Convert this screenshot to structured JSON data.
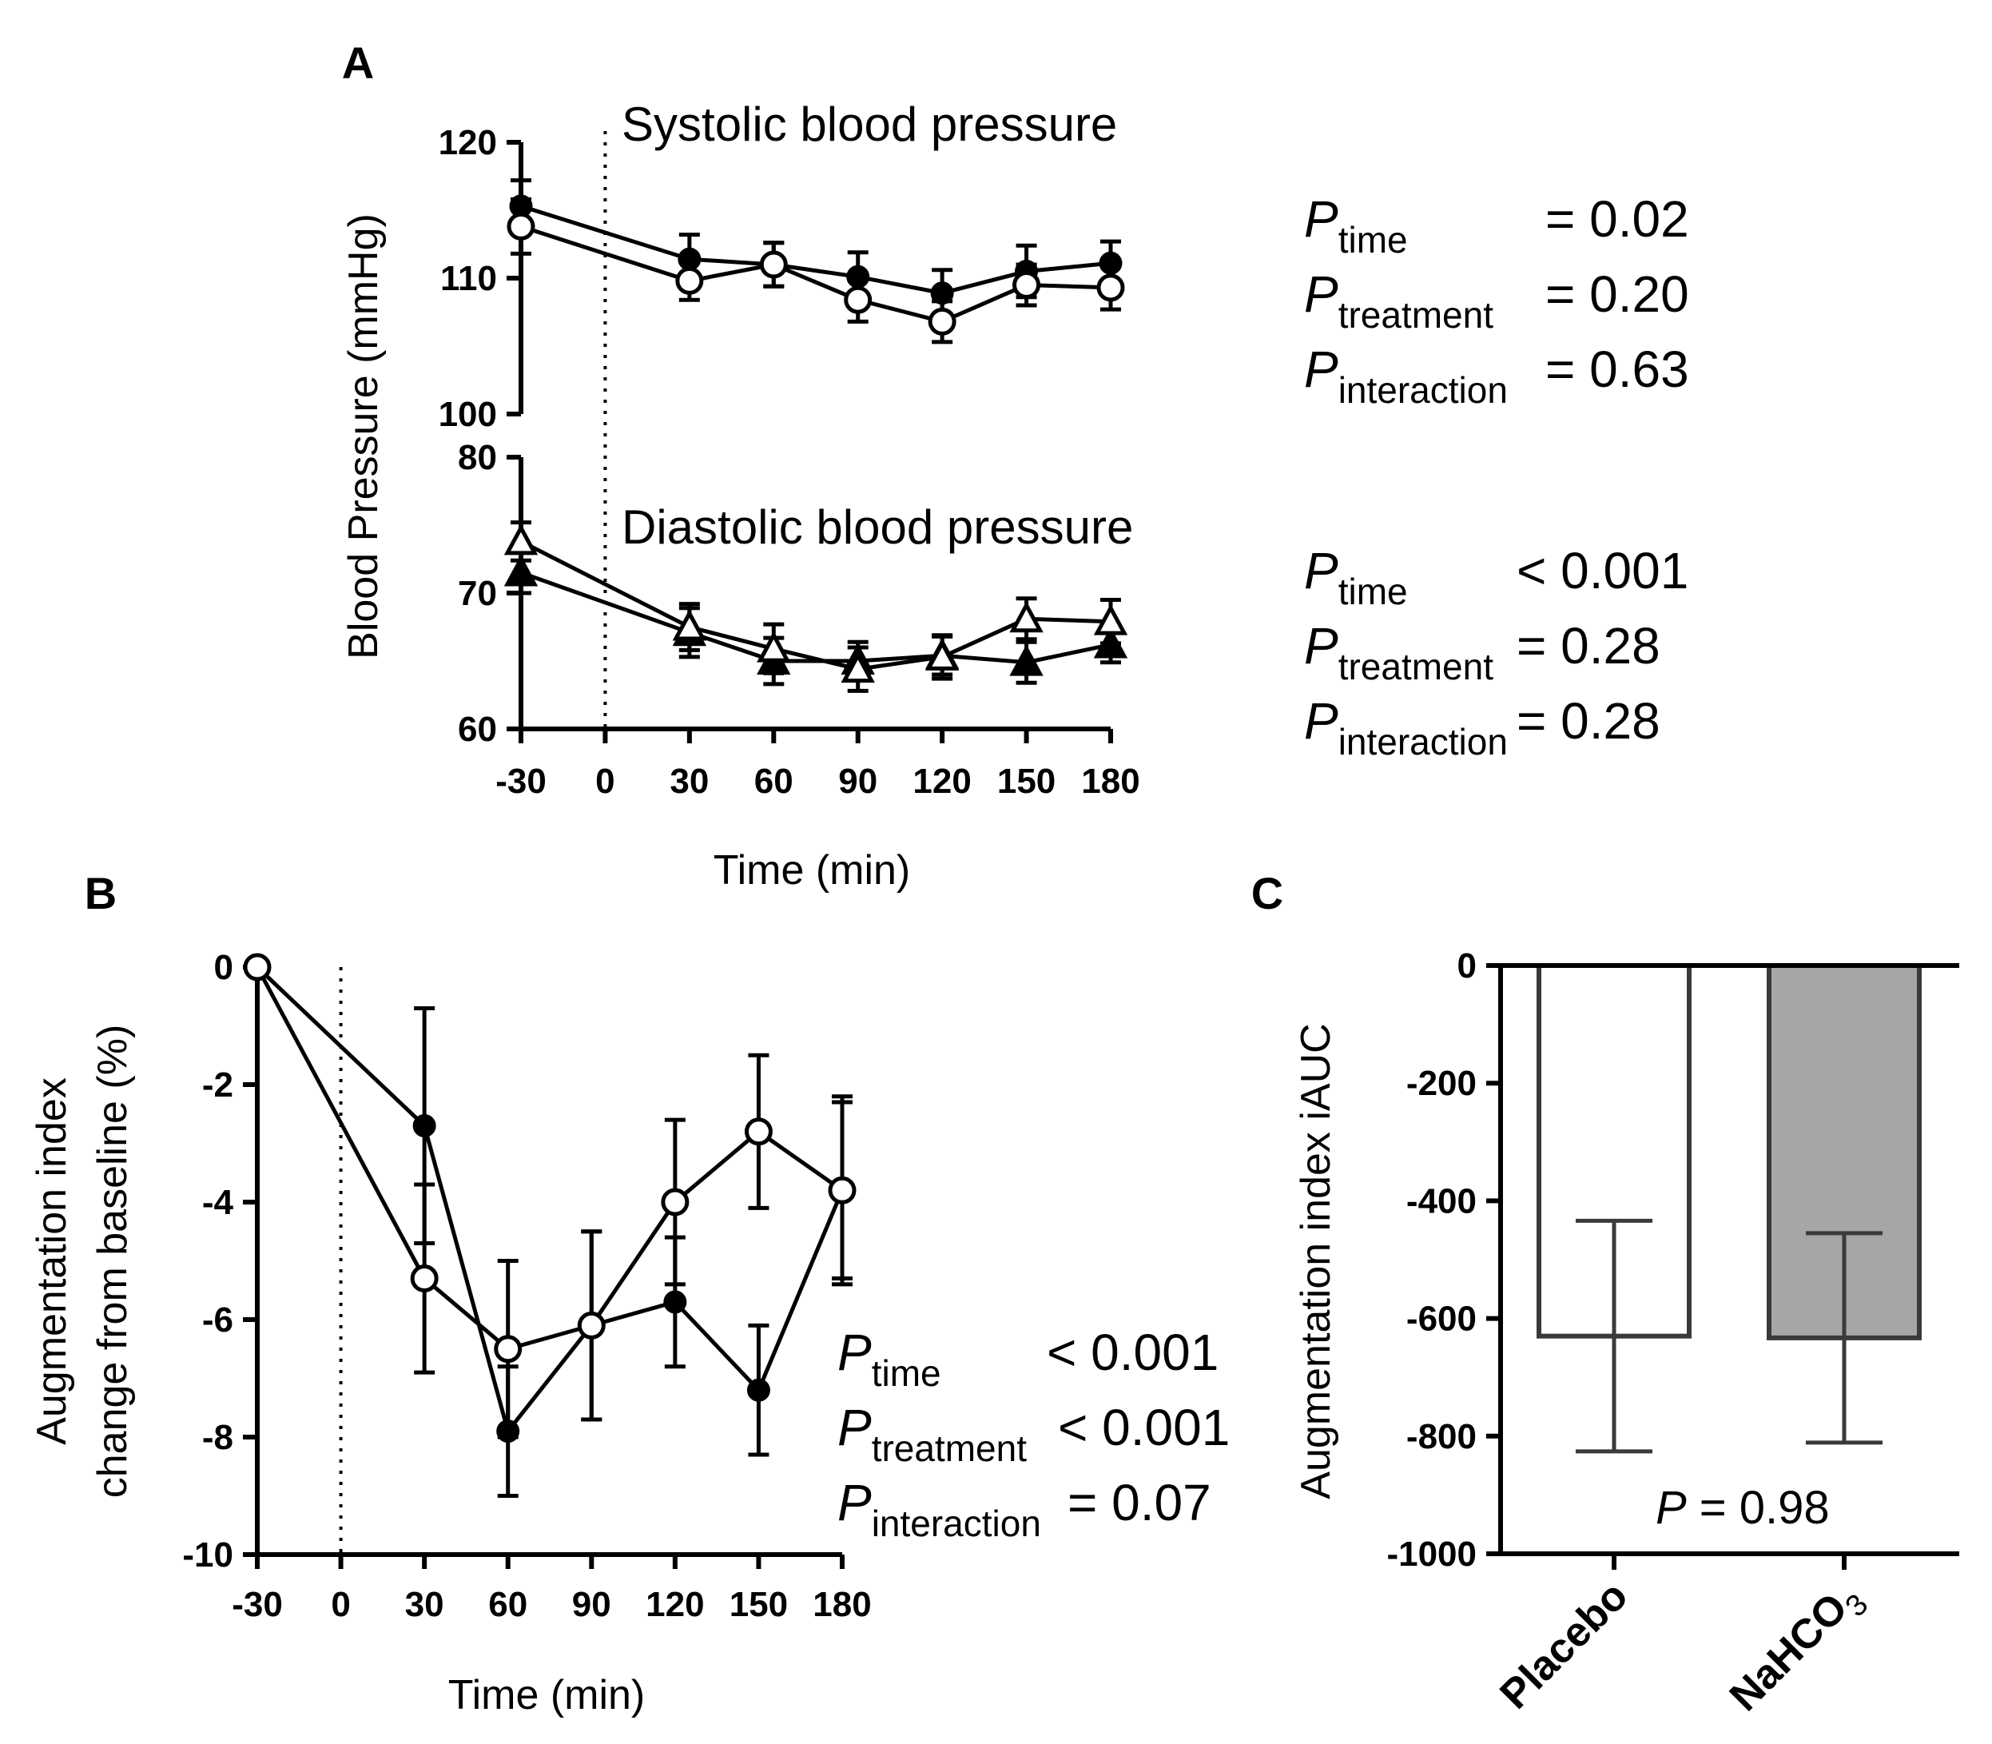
{
  "chart_data": [
    {
      "panel": "A",
      "type": "line",
      "xlabel": "Time (min)",
      "ylabel": "Blood Pressure (mmHg)",
      "x": [
        -30,
        30,
        60,
        90,
        120,
        150,
        180
      ],
      "x_ticks": [
        "-30",
        "0",
        "30",
        "60",
        "90",
        "120",
        "150",
        "180"
      ],
      "vline_x": 0,
      "subplots": [
        {
          "name": "systolic",
          "title": "Systolic blood pressure",
          "ylim": [
            100,
            120
          ],
          "y_ticks": [
            "100",
            "110",
            "120"
          ],
          "series": [
            {
              "name": "filled",
              "marker": "circle-filled",
              "values": [
                115.3,
                111.4,
                111.0,
                110.1,
                108.9,
                110.5,
                111.1
              ],
              "err": [
                1.9,
                1.8,
                1.6,
                1.8,
                1.7,
                1.9,
                1.6
              ]
            },
            {
              "name": "open",
              "marker": "circle-open",
              "values": [
                113.8,
                109.8,
                111.0,
                108.4,
                106.8,
                109.5,
                109.3
              ],
              "err": [
                2.0,
                1.4,
                1.6,
                1.6,
                1.5,
                1.5,
                1.6
              ]
            }
          ],
          "stats": [
            {
              "sub": "time",
              "rel": "= 0.02"
            },
            {
              "sub": "treatment",
              "rel": "= 0.20"
            },
            {
              "sub": "interaction",
              "rel": "= 0.63"
            }
          ]
        },
        {
          "name": "diastolic",
          "title": "Diastolic blood pressure",
          "ylim": [
            60,
            80
          ],
          "y_ticks": [
            "60",
            "70",
            "80"
          ],
          "series": [
            {
              "name": "filled",
              "marker": "triangle-filled",
              "values": [
                71.5,
                67.1,
                65.0,
                65.0,
                65.4,
                64.9,
                66.2
              ],
              "err": [
                1.5,
                1.8,
                1.7,
                1.4,
                1.4,
                1.5,
                1.3
              ]
            },
            {
              "name": "open",
              "marker": "triangle-open",
              "values": [
                73.8,
                67.5,
                65.9,
                64.4,
                65.3,
                68.1,
                67.9
              ],
              "err": [
                1.4,
                1.7,
                1.8,
                1.6,
                1.6,
                1.5,
                1.6
              ]
            }
          ],
          "stats": [
            {
              "sub": "time",
              "rel": "< 0.001"
            },
            {
              "sub": "treatment",
              "rel": "= 0.28"
            },
            {
              "sub": "interaction",
              "rel": "= 0.28"
            }
          ]
        }
      ]
    },
    {
      "panel": "B",
      "type": "line",
      "xlabel": "Time (min)",
      "ylabel": [
        "Augmentation index",
        "change from baseline (%)"
      ],
      "x": [
        -30,
        30,
        60,
        90,
        120,
        150,
        180
      ],
      "x_ticks": [
        "-30",
        "0",
        "30",
        "60",
        "90",
        "120",
        "150",
        "180"
      ],
      "ylim": [
        -10,
        0
      ],
      "y_ticks": [
        "0",
        "-2",
        "-4",
        "-6",
        "-8",
        "-10"
      ],
      "vline_x": 0,
      "series": [
        {
          "name": "filled",
          "marker": "circle-filled",
          "values": [
            0,
            -2.7,
            -7.9,
            -6.1,
            -5.7,
            -7.2,
            -3.8
          ],
          "err": [
            0,
            2.0,
            1.1,
            1.6,
            1.1,
            1.1,
            1.6
          ]
        },
        {
          "name": "open",
          "marker": "circle-open",
          "values": [
            0,
            -5.3,
            -6.5,
            -6.1,
            -4.0,
            -2.8,
            -3.8
          ],
          "err": [
            0,
            1.6,
            1.5,
            1.6,
            1.4,
            1.3,
            1.5
          ]
        }
      ],
      "stats": [
        {
          "sub": "time",
          "rel": "< 0.001"
        },
        {
          "sub": "treatment",
          "rel": "< 0.001"
        },
        {
          "sub": "interaction",
          "rel": "= 0.07"
        }
      ]
    },
    {
      "panel": "C",
      "type": "bar",
      "ylabel": "Augmentation index iAUC",
      "ylim": [
        -1000,
        0
      ],
      "y_ticks": [
        "0",
        "-200",
        "-400",
        "-600",
        "-800",
        "-1000"
      ],
      "categories": [
        "Placebo",
        "NaHCO3"
      ],
      "values": [
        -630,
        -633
      ],
      "err": [
        196,
        178
      ],
      "colors": [
        "#ffffff",
        "#a6a6a6"
      ],
      "p_label": "P",
      "p_rel": "= 0.98"
    }
  ]
}
